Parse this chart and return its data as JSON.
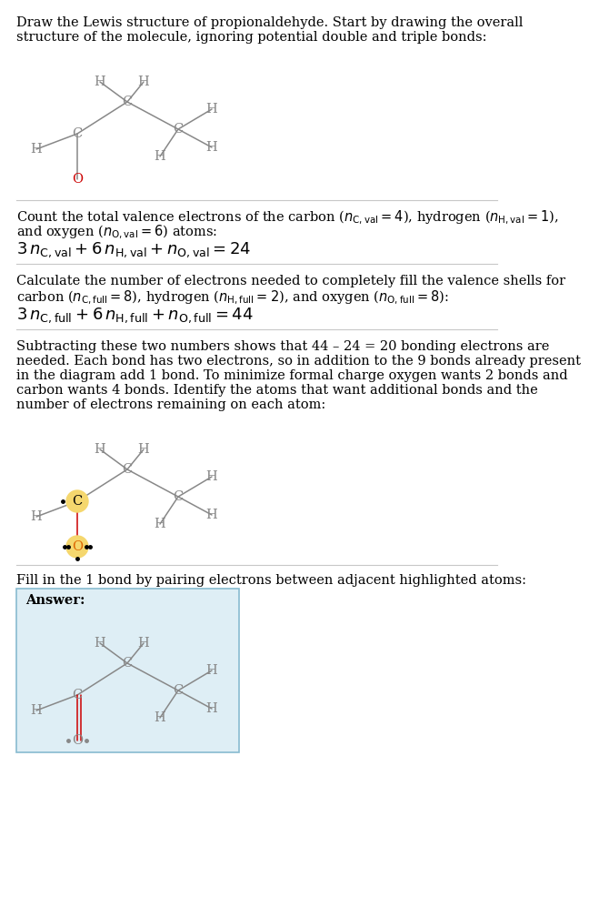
{
  "bg_color": "#ffffff",
  "gray_color": "#888888",
  "red_color": "#cc0000",
  "orange_color": "#dd6600",
  "highlight_color": "#f5d76e",
  "answer_box_color": "#deeef5",
  "answer_box_border": "#88bbd0",
  "sep_color": "#cccccc",
  "text_color": "#000000",
  "title_line1": "Draw the Lewis structure of propionaldehyde. Start by drawing the overall",
  "title_line2": "structure of the molecule, ignoring potential double and triple bonds:",
  "s1_line1": "Count the total valence electrons of the carbon (",
  "s1_line2": "and oxygen (",
  "s1_eq": "3 n",
  "s2_line1": "Calculate the number of electrons needed to completely fill the valence shells for",
  "s2_line2a": "carbon (",
  "s2_eq": "3 n",
  "s3_line1": "Subtracting these two numbers shows that 44 – 24 = 20 bonding electrons are",
  "s3_line2": "needed. Each bond has two electrons, so in addition to the 9 bonds already present",
  "s3_line3": "in the diagram add 1 bond. To minimize formal charge oxygen wants 2 bonds and",
  "s3_line4": "carbon wants 4 bonds. Identify the atoms that want additional bonds and the",
  "s3_line5": "number of electrons remaining on each atom:",
  "s4_line1": "Fill in the 1 bond by pairing electrons between adjacent highlighted atoms:",
  "answer_label": "Answer:"
}
